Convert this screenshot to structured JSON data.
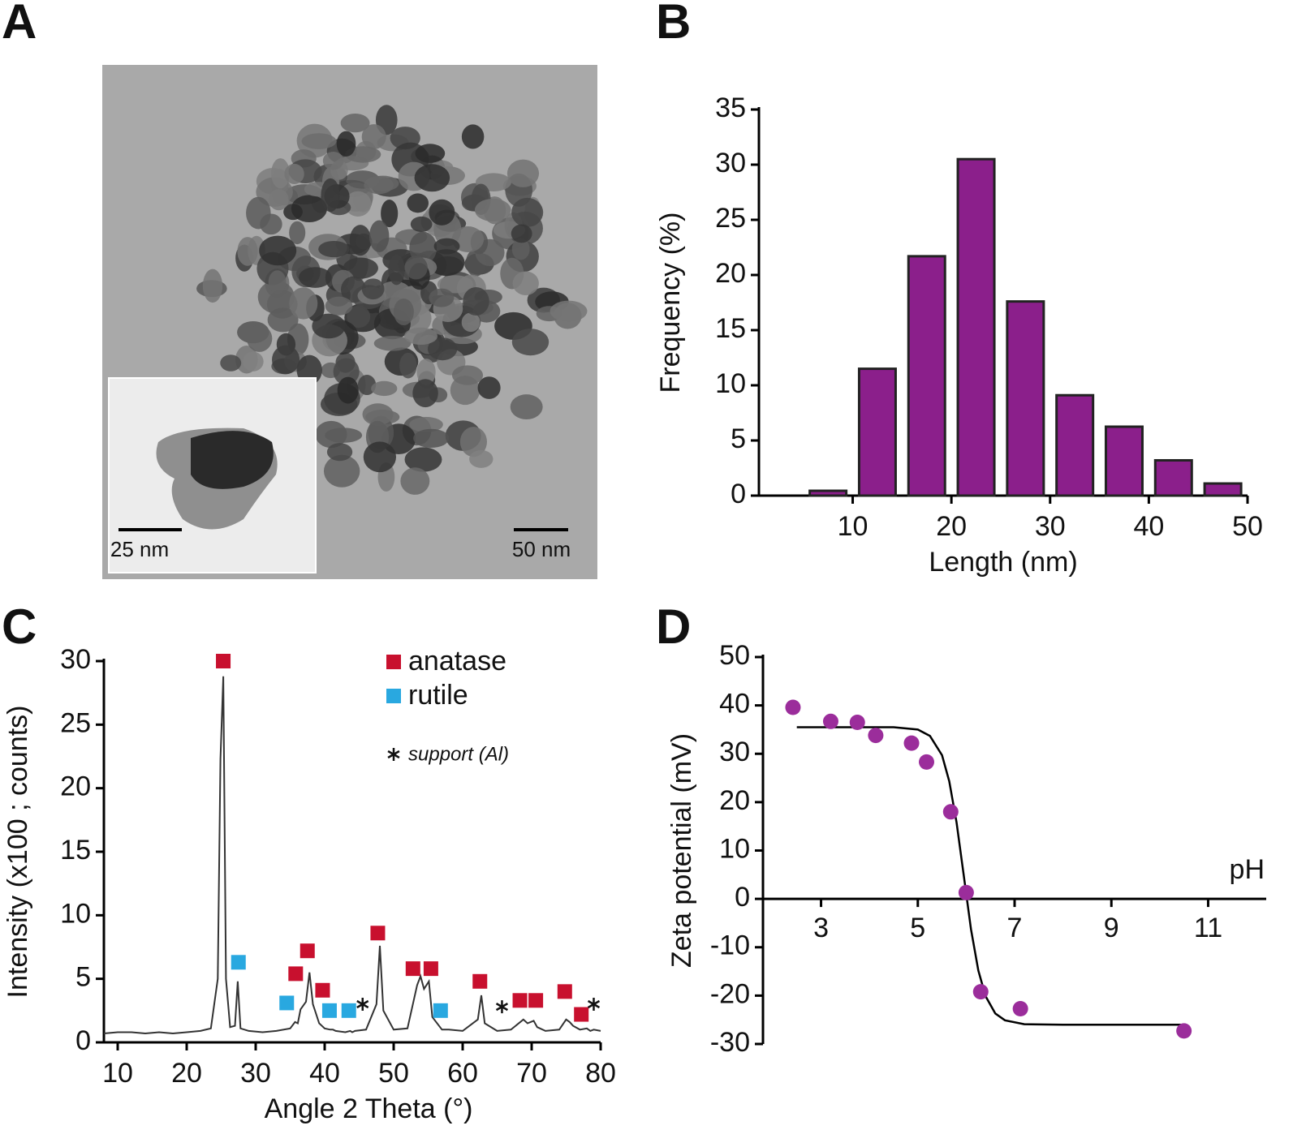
{
  "panel_a": {
    "label": "A",
    "scale_bar": "50 nm",
    "inset_scale_bar": "25 nm"
  },
  "chart_data": [
    {
      "type": "histogram",
      "panel": "B",
      "xlabel": "Length (nm)",
      "ylabel": "Frequency (%)",
      "bins": [
        5,
        10,
        15,
        20,
        25,
        30,
        35,
        40,
        45,
        50
      ],
      "values": [
        0.44,
        11.5,
        21.7,
        30.5,
        17.6,
        9.1,
        6.25,
        3.2,
        1.1
      ],
      "color": "#8b1f8b",
      "xlim": [
        0.5,
        50
      ],
      "xticks": [
        10,
        20,
        30,
        40,
        50
      ],
      "ylim": [
        0,
        35
      ],
      "yticks": [
        0,
        5,
        10,
        15,
        20,
        25,
        30,
        35
      ]
    },
    {
      "type": "line",
      "panel": "C",
      "xlabel": "Angle 2 Theta (°)",
      "ylabel": "Intensity (x100 ; counts)",
      "x": [
        8,
        10,
        12,
        14,
        16,
        18,
        20,
        22,
        23.5,
        24.5,
        24.9,
        25.3,
        25.7,
        26.3,
        27.0,
        27.4,
        27.8,
        29,
        31,
        33,
        35,
        35.7,
        36.1,
        36.5,
        37.3,
        37.8,
        38.3,
        38.6,
        39.2,
        40,
        40.8,
        41.2,
        41.6,
        43,
        43.7,
        44,
        44.4,
        46,
        47.5,
        48,
        48.5,
        50,
        52,
        53.4,
        53.9,
        54.4,
        55.1,
        55.6,
        57,
        58,
        60,
        62.2,
        62.7,
        63.2,
        65,
        67,
        68.8,
        69.4,
        70.3,
        70.8,
        72,
        74,
        75,
        75.5,
        76,
        77,
        78,
        78.5,
        79,
        80
      ],
      "values": [
        0.7,
        0.8,
        0.8,
        0.7,
        0.8,
        0.7,
        0.8,
        0.9,
        1.1,
        5,
        22.3,
        28.8,
        5,
        1.2,
        1.3,
        4.8,
        1.1,
        0.9,
        0.8,
        0.9,
        1.1,
        1.6,
        1.5,
        2.6,
        3.2,
        5.5,
        3.0,
        2.5,
        1.5,
        1.1,
        1.0,
        1.0,
        0.9,
        0.8,
        0.9,
        0.8,
        0.9,
        1.0,
        3.0,
        7.6,
        2.5,
        1.0,
        1.1,
        4.5,
        5.2,
        4.2,
        4.8,
        2.0,
        1.0,
        1.0,
        0.9,
        1.8,
        3.7,
        1.5,
        0.9,
        1.0,
        1.8,
        1.5,
        1.7,
        1.2,
        0.9,
        1.0,
        1.8,
        1.6,
        1.3,
        1.0,
        1.1,
        0.9,
        1.0,
        0.9
      ],
      "color": "#333333",
      "xlim": [
        8,
        80
      ],
      "xticks": [
        10,
        20,
        30,
        40,
        50,
        60,
        70,
        80
      ],
      "ylim": [
        0,
        30
      ],
      "yticks": [
        0,
        5,
        10,
        15,
        20,
        25,
        30
      ],
      "legend": "top-right",
      "markers": [
        {
          "name": "anatase",
          "color": "#c8102e",
          "marker": "square",
          "x": [
            25.3,
            35.8,
            37.5,
            39.7,
            47.7,
            52.8,
            55.4,
            62.5,
            68.3,
            70.6,
            74.8,
            77.2
          ],
          "values": [
            30,
            5.4,
            7.2,
            4.1,
            8.6,
            5.8,
            5.8,
            4.8,
            3.3,
            3.3,
            4.0,
            2.2
          ]
        },
        {
          "name": "rutile",
          "color": "#29a8e0",
          "marker": "square",
          "x": [
            27.5,
            34.5,
            40.7,
            43.5,
            56.8
          ],
          "values": [
            6.3,
            3.1,
            2.5,
            2.5,
            2.5
          ]
        },
        {
          "name": "support (Al)",
          "color": "#111111",
          "marker": "asterisk",
          "x": [
            45.5,
            65.7,
            79
          ],
          "values": [
            3,
            2.8,
            3
          ]
        }
      ]
    },
    {
      "type": "scatter",
      "panel": "D",
      "xlabel": "pH",
      "ylabel": "Zeta potential (mV)",
      "x": [
        2.42,
        3.2,
        3.75,
        4.13,
        4.87,
        5.18,
        5.68,
        6.0,
        6.3,
        7.12,
        10.5
      ],
      "values": [
        39.6,
        36.7,
        36.5,
        33.8,
        32.2,
        28.3,
        18.0,
        1.3,
        -19.2,
        -22.7,
        -27.3
      ],
      "color": "#9b2d9b",
      "fit": {
        "x": [
          2.5,
          4,
          4.5,
          5,
          5.25,
          5.5,
          5.65,
          5.8,
          5.95,
          6.1,
          6.25,
          6.4,
          6.6,
          6.8,
          7.2,
          8,
          10.5
        ],
        "values": [
          35.5,
          35.5,
          35.5,
          35.0,
          33.7,
          29.7,
          24.3,
          15.8,
          4.8,
          -6.3,
          -14.8,
          -20.1,
          -23.7,
          -25.1,
          -25.9,
          -26,
          -26
        ],
        "color": "#000000"
      },
      "xlim": [
        1.8,
        12.2
      ],
      "xticks": [
        3,
        5,
        7,
        9,
        11
      ],
      "ylim": [
        -30,
        50
      ],
      "yticks": [
        -30,
        -20,
        -10,
        0,
        10,
        20,
        30,
        40,
        50
      ]
    }
  ]
}
